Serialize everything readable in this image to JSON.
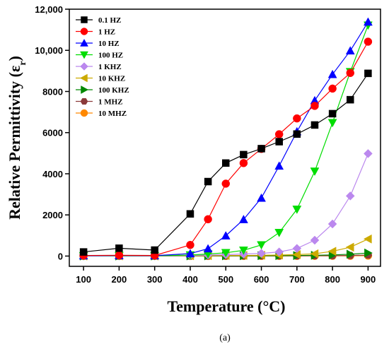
{
  "chart_data": {
    "type": "line",
    "caption": "(a)",
    "xlabel": "Temperature (°C)",
    "ylabel_main": "Relative Permittivity (ε",
    "ylabel_sub": "r",
    "ylabel_close": ")",
    "xlim": [
      60,
      935
    ],
    "ylim": [
      -500,
      12000
    ],
    "x_ticks": [
      100,
      200,
      300,
      400,
      500,
      600,
      700,
      800,
      900
    ],
    "x_tick_labels": [
      "100",
      "200",
      "300",
      "400",
      "500",
      "600",
      "700",
      "800",
      "900"
    ],
    "y_ticks": [
      0,
      2000,
      4000,
      6000,
      8000,
      10000,
      12000
    ],
    "y_tick_labels": [
      "0",
      "2000",
      "4000",
      "6000",
      "8000",
      "10,000",
      "12,000"
    ],
    "legend_position": "top-left",
    "grid": false,
    "x": [
      100,
      200,
      300,
      400,
      450,
      500,
      550,
      600,
      650,
      700,
      750,
      800,
      850,
      900
    ],
    "series": [
      {
        "name": "0.1 HZ",
        "color": "#000000",
        "marker": "square",
        "values": [
          200,
          380,
          290,
          2050,
          3620,
          4520,
          4930,
          5220,
          5560,
          5930,
          6370,
          6920,
          7600,
          8880
        ]
      },
      {
        "name": "1 HZ",
        "color": "#ff0000",
        "marker": "circle",
        "values": [
          30,
          40,
          30,
          540,
          1790,
          3520,
          4520,
          5210,
          5920,
          6690,
          7300,
          8140,
          8900,
          10420
        ]
      },
      {
        "name": "10 HZ",
        "color": "#0000ff",
        "marker": "triangle-up",
        "values": [
          20,
          30,
          20,
          120,
          360,
          990,
          1780,
          2820,
          4380,
          6050,
          7560,
          8830,
          9980,
          11380
        ]
      },
      {
        "name": "100 HZ",
        "color": "#00dd00",
        "marker": "triangle-down",
        "values": [
          10,
          20,
          15,
          50,
          100,
          160,
          280,
          540,
          1140,
          2270,
          4120,
          6480,
          8960,
          11220
        ]
      },
      {
        "name": "1 KHZ",
        "color": "#bb88ee",
        "marker": "diamond",
        "values": [
          5,
          10,
          8,
          30,
          50,
          70,
          100,
          130,
          200,
          370,
          770,
          1560,
          2920,
          4980
        ]
      },
      {
        "name": "10 KHZ",
        "color": "#ccaa00",
        "marker": "triangle-left",
        "values": [
          3,
          5,
          4,
          15,
          20,
          25,
          30,
          40,
          50,
          70,
          110,
          230,
          430,
          830
        ]
      },
      {
        "name": "100 KHZ",
        "color": "#008800",
        "marker": "triangle-right",
        "values": [
          2,
          3,
          3,
          8,
          10,
          12,
          15,
          18,
          20,
          25,
          35,
          55,
          90,
          150
        ]
      },
      {
        "name": "1 MHZ",
        "color": "#8b3a3a",
        "marker": "hexagon",
        "values": [
          2,
          2,
          2,
          5,
          6,
          7,
          8,
          9,
          10,
          12,
          15,
          20,
          30,
          50
        ]
      },
      {
        "name": "10 MHZ",
        "color": "#ff8800",
        "marker": "circle",
        "values": [
          1,
          1,
          1,
          3,
          4,
          4,
          5,
          5,
          6,
          7,
          8,
          10,
          12,
          20
        ]
      }
    ]
  }
}
